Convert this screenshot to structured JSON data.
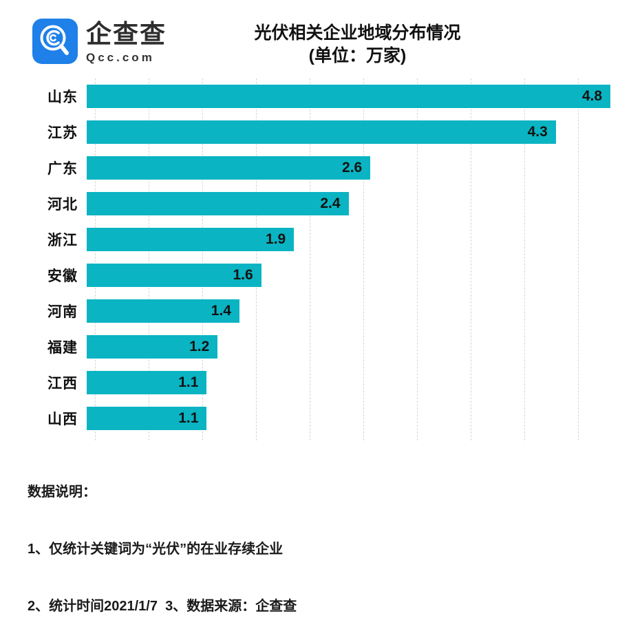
{
  "header": {
    "logo": {
      "brand": "企查查",
      "domain": "Qcc.com",
      "badge_color": "#1e80e8",
      "glyph": "magnifier-q-icon"
    }
  },
  "chart_data": {
    "type": "bar",
    "orientation": "horizontal",
    "title": "光伏相关企业地域分布情况",
    "subtitle": "(单位：万家)",
    "unit": "万家",
    "categories": [
      "山东",
      "江苏",
      "广东",
      "河北",
      "浙江",
      "安徽",
      "河南",
      "福建",
      "江西",
      "山西"
    ],
    "values": [
      4.8,
      4.3,
      2.6,
      2.4,
      1.9,
      1.6,
      1.4,
      1.2,
      1.1,
      1.1
    ],
    "xlim": [
      0,
      4.85
    ],
    "grid": true,
    "grid_interval": 0.5,
    "grid_max": 4.5,
    "bar_color": "#0ab4c3",
    "value_label_position": "inside-end",
    "legend": "none"
  },
  "notes": {
    "heading": "数据说明：",
    "line1": "1、仅统计关键词为“光伏”的在业存续企业",
    "line2": "2、统计时间2021/1/7  3、数据来源：企查查"
  }
}
